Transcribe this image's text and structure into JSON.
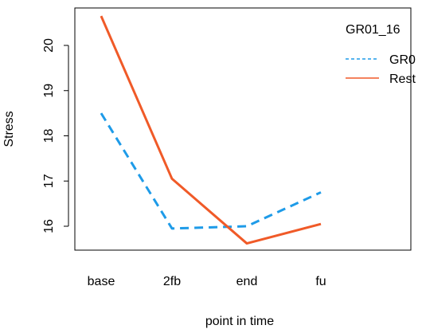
{
  "chart_data": {
    "type": "line",
    "title": "",
    "xlabel": "point in time",
    "ylabel": "Stress",
    "categories": [
      "base",
      "2fb",
      "end",
      "fu"
    ],
    "ylim": [
      15.5,
      20.8
    ],
    "yticks": [
      16,
      17,
      18,
      19,
      20
    ],
    "grid": false,
    "legend": {
      "title": "GR01_16",
      "placement": "top-right",
      "entries": [
        "GR0",
        "Rest"
      ]
    },
    "series": [
      {
        "name": "GR0",
        "values": [
          18.5,
          15.95,
          16.0,
          16.75
        ],
        "color": "#1e9be8",
        "dash": "dashed"
      },
      {
        "name": "Rest",
        "values": [
          20.65,
          17.05,
          15.62,
          16.05
        ],
        "color": "#f05a28",
        "dash": "solid"
      }
    ]
  }
}
